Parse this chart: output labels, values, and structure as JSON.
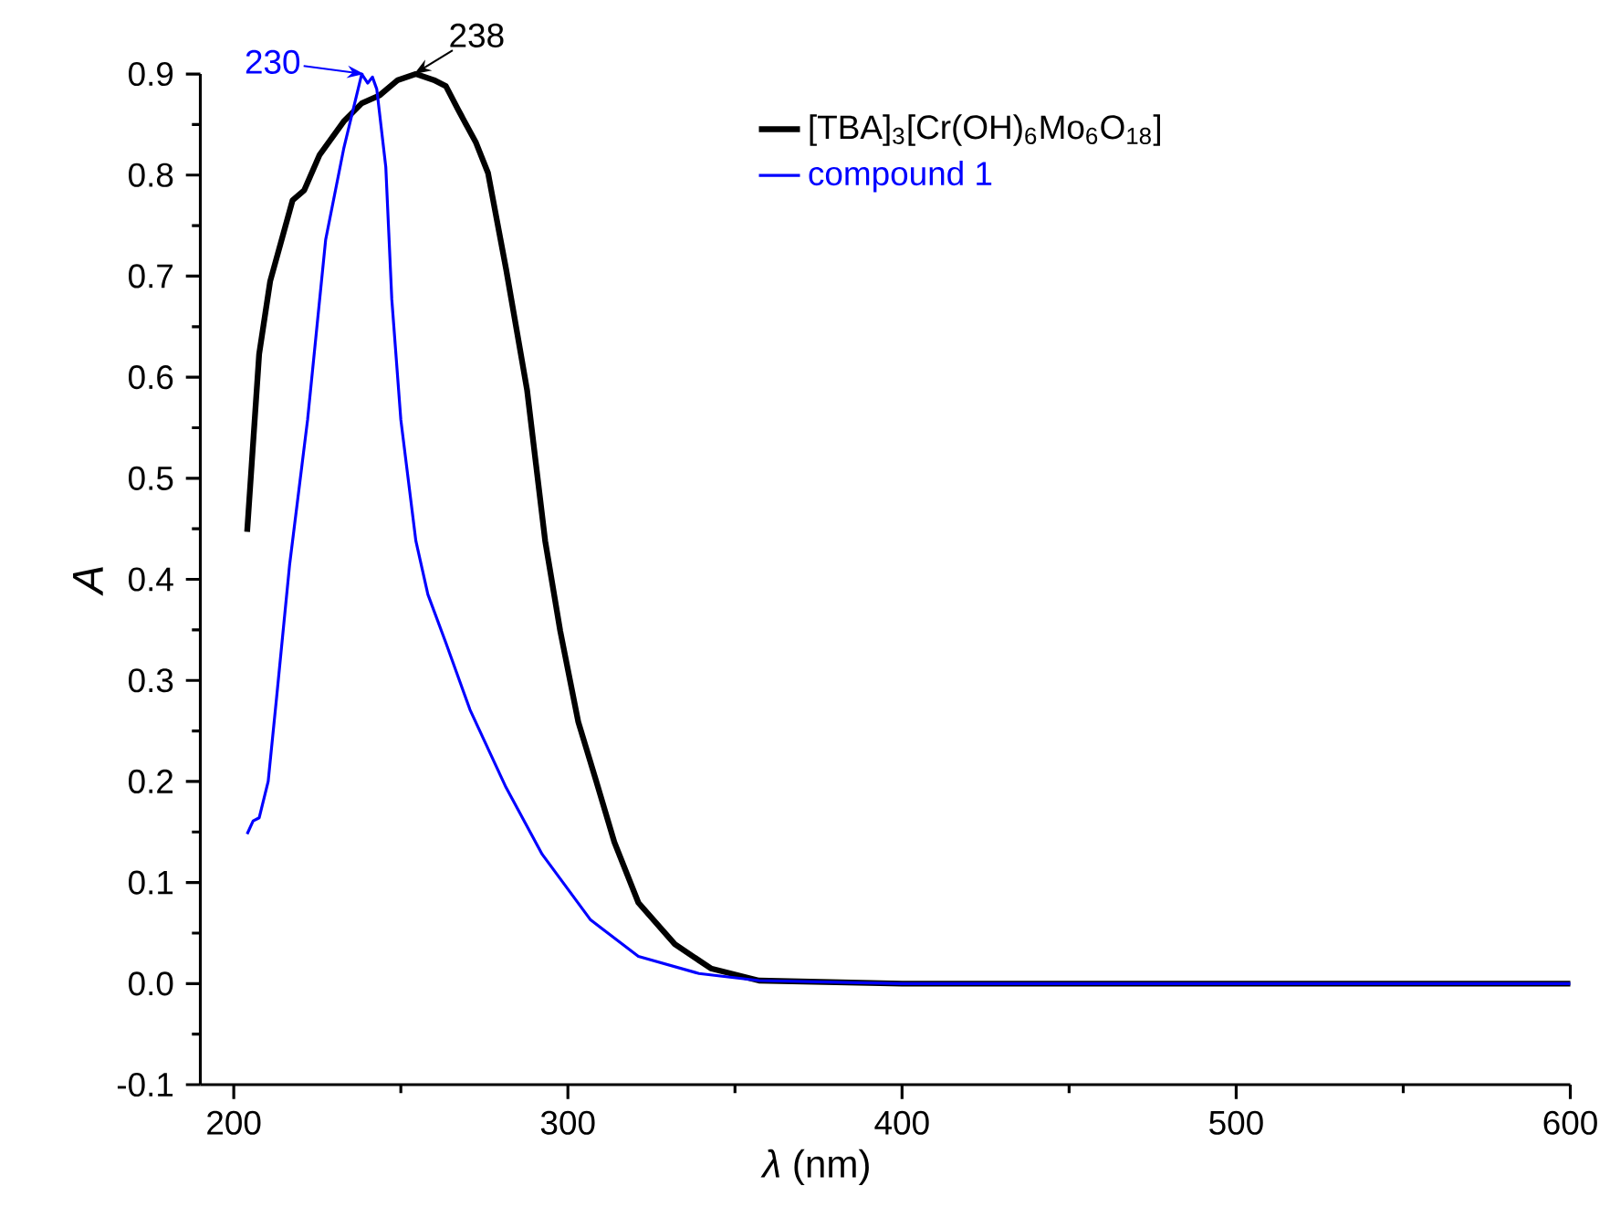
{
  "chart_data": {
    "type": "line",
    "xlabel": "*λ* (nm)",
    "ylabel": "A",
    "xlim": [
      190,
      600
    ],
    "ylim": [
      -0.1,
      0.9
    ],
    "xticks": [
      200,
      300,
      400,
      500,
      600
    ],
    "yticks": [
      {
        "value": -0.1,
        "label": "-0.1"
      },
      {
        "value": 0,
        "label": "0.0"
      },
      {
        "value": 0.1,
        "label": "0.1"
      },
      {
        "value": 0.2,
        "label": "0.2"
      },
      {
        "value": 0.3,
        "label": "0.3"
      },
      {
        "value": 0.4,
        "label": "0.4"
      },
      {
        "value": 0.5,
        "label": "0.5"
      },
      {
        "value": 0.6,
        "label": "0.6"
      },
      {
        "value": 0.7,
        "label": "0.7"
      },
      {
        "value": 0.8,
        "label": "0.8"
      },
      {
        "value": 0.9,
        "label": "0.9"
      }
    ],
    "legend": "top right",
    "grid": false,
    "marker": "none",
    "line_style": "solid",
    "annotations": [
      {
        "text": "238",
        "x": 254,
        "y": 0.9
      },
      {
        "text": "230",
        "x": 239,
        "y": 0.9
      }
    ],
    "series": [
      {
        "name": "[TBA]$_{3}$[Cr(OH)$_{6}$Mo$_{6}$O$_{18}$]",
        "color": "#000000",
        "x": [
          204,
          207.6,
          210.9,
          217.6,
          221.1,
          225.7,
          232.9,
          238.3,
          243.7,
          249.1,
          254.5,
          259.9,
          263.5,
          267.1,
          272.5,
          276.1,
          281.5,
          287.8,
          293.2,
          297.7,
          303.1,
          308.5,
          313.9,
          321.1,
          332,
          342.8,
          357.2,
          400,
          500,
          600
        ],
        "values": [
          0.447,
          0.623,
          0.695,
          0.775,
          0.785,
          0.82,
          0.853,
          0.871,
          0.879,
          0.894,
          0.9,
          0.894,
          0.888,
          0.865,
          0.832,
          0.802,
          0.707,
          0.587,
          0.438,
          0.349,
          0.259,
          0.2,
          0.14,
          0.08,
          0.039,
          0.015,
          0.003,
          0.0,
          0.0,
          0.0
        ]
      },
      {
        "name": "compound 1",
        "color": "#0000ff",
        "x": [
          204,
          205.8,
          207.6,
          210.3,
          213,
          216.7,
          222.1,
          227.5,
          232.9,
          238.3,
          240.1,
          241.5,
          242.8,
          245.5,
          247.3,
          250,
          254.5,
          258.1,
          263.5,
          270.7,
          281.5,
          292.3,
          306.8,
          321.1,
          339.2,
          357.2,
          400,
          500,
          600
        ],
        "values": [
          0.148,
          0.161,
          0.164,
          0.2,
          0.289,
          0.414,
          0.558,
          0.736,
          0.826,
          0.9,
          0.891,
          0.897,
          0.885,
          0.808,
          0.677,
          0.558,
          0.438,
          0.385,
          0.337,
          0.271,
          0.194,
          0.128,
          0.063,
          0.027,
          0.01,
          0.003,
          0.0,
          0.0,
          0.0
        ]
      }
    ]
  }
}
